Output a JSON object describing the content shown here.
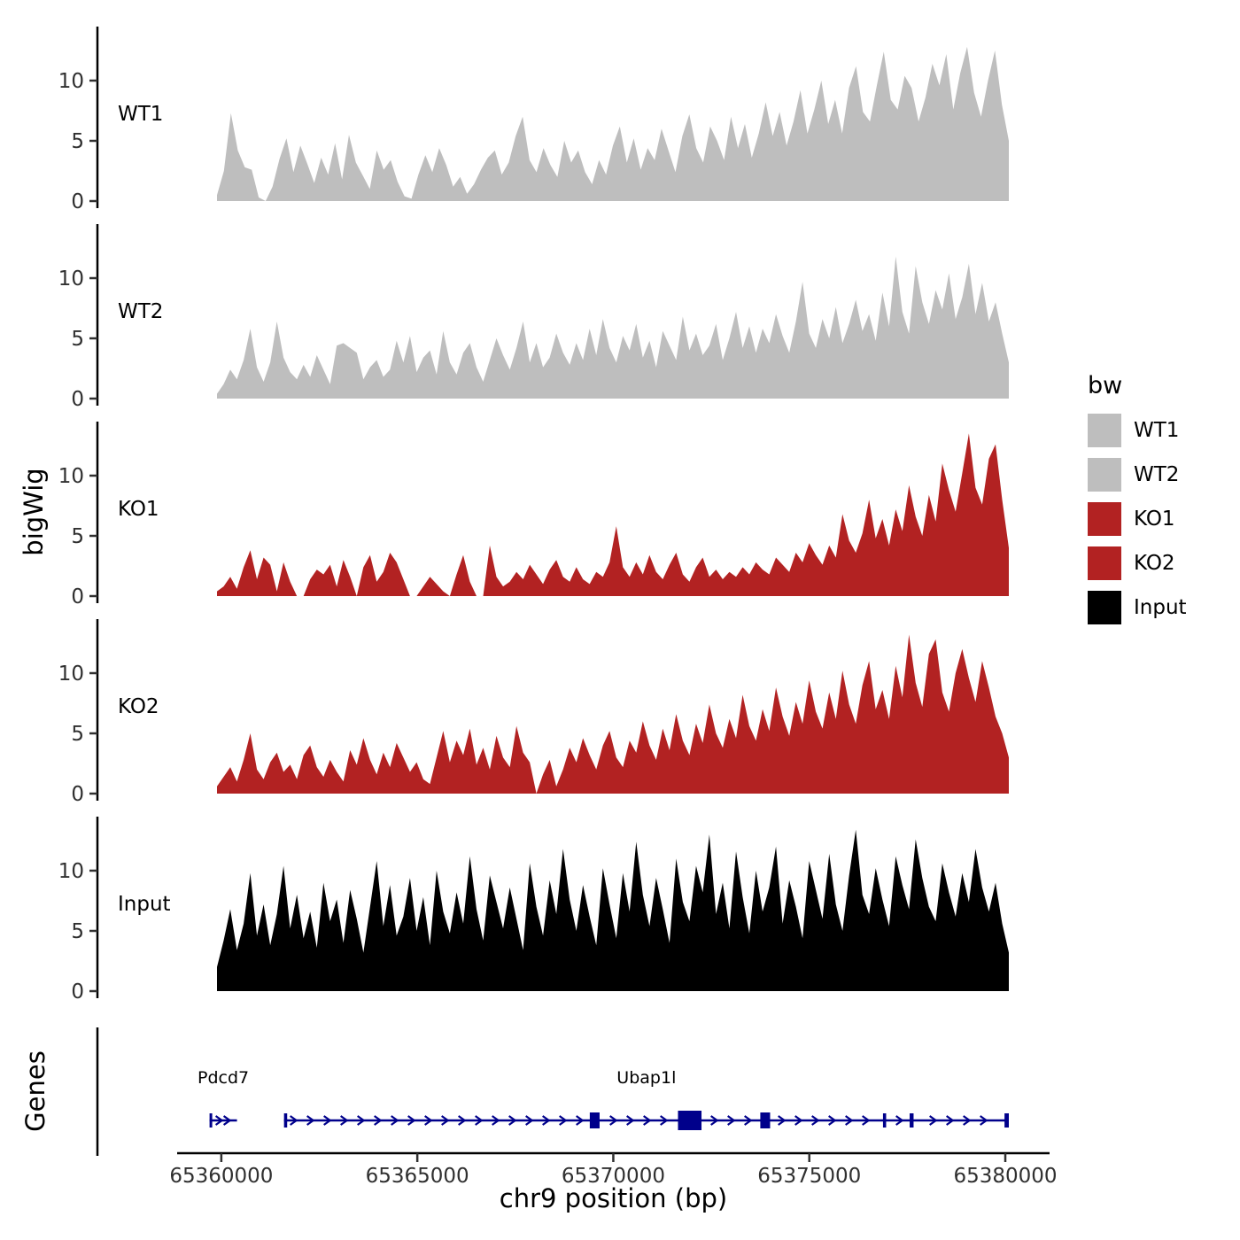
{
  "chart_data": {
    "type": "area",
    "title": "",
    "xlabel": "chr9 position (bp)",
    "ylabel": "bigWig",
    "x_range_bp": [
      65359890,
      65380090
    ],
    "x_ticks": [
      65360000,
      65365000,
      65370000,
      65375000,
      65380000
    ],
    "y_ticks": [
      0,
      5,
      10
    ],
    "grid": false,
    "facets": [
      {
        "label": "WT1",
        "color": "#bebebe",
        "values": [
          0.5,
          2.5,
          7.3,
          4.2,
          2.8,
          2.6,
          0.3,
          0.0,
          1.2,
          3.5,
          5.2,
          2.4,
          4.6,
          3.1,
          1.5,
          3.6,
          2.2,
          4.8,
          1.8,
          5.5,
          3.2,
          2.1,
          1.0,
          4.2,
          2.6,
          3.4,
          1.6,
          0.4,
          0.2,
          2.2,
          3.8,
          2.4,
          4.4,
          3.0,
          1.2,
          2.0,
          0.6,
          1.4,
          2.6,
          3.6,
          4.2,
          2.2,
          3.2,
          5.4,
          7.0,
          3.4,
          2.4,
          4.4,
          3.0,
          2.0,
          5.0,
          3.2,
          4.2,
          2.4,
          1.4,
          3.4,
          2.2,
          4.6,
          6.2,
          3.2,
          5.2,
          2.6,
          4.4,
          3.4,
          6.0,
          4.2,
          2.4,
          5.4,
          7.2,
          4.4,
          3.2,
          6.2,
          5.0,
          3.4,
          7.0,
          4.4,
          6.4,
          3.6,
          5.6,
          8.2,
          5.4,
          7.4,
          4.6,
          6.6,
          9.2,
          5.6,
          7.6,
          10.0,
          6.4,
          8.4,
          5.6,
          9.4,
          11.2,
          7.4,
          6.6,
          9.6,
          12.4,
          8.4,
          7.6,
          10.4,
          9.4,
          6.6,
          8.6,
          11.4,
          9.6,
          12.2,
          7.6,
          10.6,
          12.8,
          9.0,
          7.0,
          10.0,
          12.5,
          8.0,
          5.0
        ]
      },
      {
        "label": "WT2",
        "color": "#bebebe",
        "values": [
          0.4,
          1.2,
          2.4,
          1.6,
          3.2,
          5.8,
          2.6,
          1.4,
          3.0,
          6.4,
          3.4,
          2.2,
          1.6,
          2.8,
          1.8,
          3.6,
          2.4,
          1.2,
          4.4,
          4.6,
          4.2,
          3.8,
          1.6,
          2.6,
          3.2,
          1.8,
          2.4,
          4.8,
          3.0,
          5.2,
          2.2,
          3.4,
          4.0,
          2.0,
          5.6,
          3.0,
          2.0,
          3.8,
          4.6,
          2.6,
          1.4,
          3.2,
          5.0,
          3.6,
          2.4,
          4.2,
          6.4,
          3.0,
          4.6,
          2.6,
          3.4,
          5.4,
          3.8,
          2.8,
          4.6,
          3.2,
          5.8,
          3.6,
          6.6,
          4.2,
          3.0,
          5.2,
          4.0,
          6.2,
          3.4,
          4.8,
          2.6,
          5.6,
          4.4,
          3.2,
          6.8,
          4.0,
          5.4,
          3.6,
          4.4,
          6.2,
          3.2,
          5.0,
          7.2,
          4.2,
          6.0,
          3.8,
          5.8,
          4.6,
          7.0,
          5.2,
          3.8,
          6.4,
          9.7,
          5.4,
          4.2,
          6.6,
          5.0,
          7.6,
          4.6,
          6.2,
          8.2,
          5.6,
          7.0,
          4.8,
          8.8,
          6.0,
          11.8,
          7.2,
          5.4,
          11.0,
          8.0,
          6.2,
          9.0,
          7.4,
          10.4,
          6.6,
          8.4,
          11.2,
          7.0,
          9.6,
          6.4,
          8.0,
          5.4,
          3.0
        ]
      },
      {
        "label": "KO1",
        "color": "#b22222",
        "values": [
          0.4,
          0.8,
          1.6,
          0.6,
          2.4,
          3.8,
          1.4,
          3.2,
          2.6,
          0.4,
          2.8,
          1.2,
          0.0,
          0.0,
          1.4,
          2.2,
          1.8,
          2.6,
          0.8,
          3.0,
          1.6,
          0.0,
          2.4,
          3.4,
          1.2,
          2.0,
          3.6,
          2.8,
          1.4,
          0.0,
          0.0,
          0.8,
          1.6,
          1.0,
          0.4,
          0.0,
          1.8,
          3.4,
          1.2,
          0.0,
          0.0,
          4.2,
          1.6,
          0.8,
          1.2,
          2.0,
          1.4,
          2.6,
          1.8,
          1.0,
          2.2,
          3.0,
          1.6,
          1.2,
          2.4,
          1.4,
          1.0,
          2.0,
          1.6,
          2.8,
          5.8,
          2.4,
          1.6,
          2.8,
          1.8,
          3.4,
          2.0,
          1.4,
          2.6,
          3.6,
          1.8,
          1.2,
          2.4,
          3.2,
          1.6,
          2.2,
          1.4,
          2.0,
          1.6,
          2.4,
          1.8,
          2.8,
          2.2,
          1.8,
          3.2,
          2.6,
          2.0,
          3.6,
          2.8,
          4.4,
          3.4,
          2.6,
          4.2,
          3.2,
          6.8,
          4.6,
          3.6,
          5.2,
          8.0,
          4.8,
          6.4,
          4.2,
          7.2,
          5.4,
          9.2,
          6.6,
          5.0,
          8.4,
          6.2,
          11.0,
          8.8,
          7.0,
          10.2,
          13.5,
          9.0,
          7.6,
          11.4,
          12.6,
          8.0,
          4.0
        ]
      },
      {
        "label": "KO2",
        "color": "#b22222",
        "values": [
          0.6,
          1.4,
          2.2,
          1.0,
          2.8,
          5.0,
          2.0,
          1.2,
          2.6,
          3.4,
          1.8,
          2.4,
          1.2,
          3.2,
          4.0,
          2.2,
          1.4,
          2.8,
          1.8,
          1.0,
          3.6,
          2.4,
          4.6,
          2.8,
          1.6,
          3.4,
          2.2,
          4.2,
          3.0,
          1.8,
          2.6,
          1.2,
          0.8,
          3.0,
          5.2,
          2.6,
          4.4,
          3.2,
          5.4,
          2.4,
          3.8,
          2.0,
          4.8,
          3.0,
          2.2,
          5.6,
          3.4,
          2.6,
          0.0,
          1.6,
          2.8,
          0.6,
          2.0,
          3.8,
          2.6,
          4.6,
          3.2,
          2.0,
          4.0,
          5.2,
          3.0,
          2.2,
          4.4,
          3.4,
          6.0,
          4.0,
          2.8,
          5.4,
          3.6,
          6.6,
          4.4,
          3.2,
          5.8,
          4.2,
          7.4,
          5.0,
          3.8,
          6.2,
          4.6,
          8.2,
          5.6,
          4.4,
          7.0,
          5.2,
          8.8,
          6.4,
          4.8,
          7.6,
          5.8,
          9.4,
          6.8,
          5.4,
          8.4,
          6.2,
          10.2,
          7.4,
          5.8,
          9.0,
          11.0,
          7.0,
          8.6,
          6.2,
          10.6,
          8.0,
          13.2,
          9.2,
          7.2,
          11.6,
          12.8,
          8.4,
          6.8,
          10.0,
          12.0,
          9.6,
          7.6,
          11.0,
          8.8,
          6.4,
          5.0,
          3.0
        ]
      },
      {
        "label": "Input",
        "color": "#000000",
        "values": [
          2.0,
          4.2,
          6.8,
          3.4,
          5.6,
          9.8,
          4.6,
          7.2,
          3.8,
          6.4,
          10.4,
          5.2,
          8.0,
          4.4,
          6.6,
          3.6,
          9.0,
          5.8,
          7.6,
          4.0,
          8.4,
          6.0,
          3.2,
          7.0,
          10.8,
          5.4,
          8.8,
          4.6,
          6.2,
          9.4,
          5.0,
          7.8,
          3.8,
          10.0,
          6.6,
          4.8,
          8.2,
          5.6,
          11.2,
          6.8,
          4.2,
          9.6,
          7.4,
          5.2,
          8.6,
          6.0,
          3.4,
          10.6,
          7.0,
          4.6,
          9.2,
          6.4,
          11.8,
          7.6,
          5.0,
          8.8,
          6.2,
          3.8,
          10.2,
          7.2,
          4.4,
          9.8,
          6.6,
          12.4,
          8.0,
          5.4,
          9.4,
          6.8,
          4.0,
          11.0,
          7.4,
          5.8,
          10.4,
          8.2,
          13.0,
          6.4,
          9.0,
          5.2,
          11.6,
          7.8,
          4.8,
          10.0,
          6.6,
          8.6,
          12.0,
          5.6,
          9.2,
          7.0,
          4.4,
          10.8,
          8.4,
          6.0,
          11.4,
          7.2,
          5.0,
          9.6,
          13.4,
          8.0,
          6.4,
          10.2,
          7.6,
          5.4,
          11.2,
          8.8,
          6.8,
          12.6,
          9.4,
          7.0,
          5.8,
          10.6,
          8.2,
          6.2,
          9.8,
          7.4,
          11.8,
          8.6,
          6.6,
          9.0,
          5.6,
          3.2
        ]
      }
    ],
    "legend": {
      "title": "bw",
      "position": "right",
      "entries": [
        {
          "label": "WT1",
          "color": "#bebebe"
        },
        {
          "label": "WT2",
          "color": "#bebebe"
        },
        {
          "label": "KO1",
          "color": "#b22222"
        },
        {
          "label": "KO2",
          "color": "#b22222"
        },
        {
          "label": "Input",
          "color": "#000000"
        }
      ]
    },
    "genes_track": {
      "label": "Genes",
      "gene_color": "#00008b",
      "genes": [
        {
          "name": "Pdcd7",
          "start": 65359700,
          "end": 65360400,
          "strand": "+",
          "exons": [
            {
              "start": 65359700,
              "end": 65359760,
              "size": "small"
            }
          ]
        },
        {
          "name": "Ubap1l",
          "start": 65361600,
          "end": 65380090,
          "strand": "+",
          "exons": [
            {
              "start": 65361600,
              "end": 65361680,
              "size": "small"
            },
            {
              "start": 65369400,
              "end": 65369650,
              "size": "medium"
            },
            {
              "start": 65371650,
              "end": 65372250,
              "size": "large"
            },
            {
              "start": 65373750,
              "end": 65374000,
              "size": "medium"
            },
            {
              "start": 65376880,
              "end": 65376960,
              "size": "small"
            },
            {
              "start": 65377560,
              "end": 65377660,
              "size": "small"
            },
            {
              "start": 65379980,
              "end": 65380090,
              "size": "small"
            }
          ]
        }
      ]
    }
  }
}
